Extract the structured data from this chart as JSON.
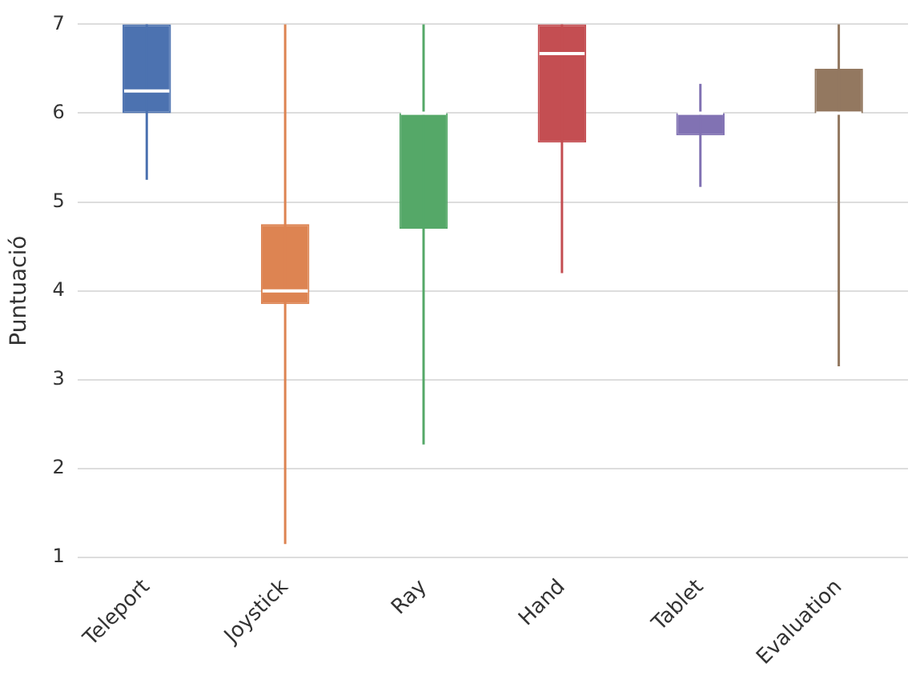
{
  "chart_data": {
    "type": "box",
    "ylabel": "Puntuació",
    "categories": [
      "Teleport",
      "Joystick",
      "Ray",
      "Hand",
      "Tablet",
      "Evaluation"
    ],
    "colors": [
      "#4c72b0",
      "#dd8452",
      "#55a868",
      "#c44e52",
      "#8172b3",
      "#937860"
    ],
    "boxes": [
      {
        "low": 5.25,
        "q1": 6,
        "median": 6.25,
        "q3": 7,
        "high": 7
      },
      {
        "low": 1.15,
        "q1": 3.85,
        "median": 4,
        "q3": 4.75,
        "high": 7
      },
      {
        "low": 2.27,
        "q1": 4.7,
        "median": 6,
        "q3": 6,
        "high": 7
      },
      {
        "low": 4.2,
        "q1": 5.67,
        "median": 6.67,
        "q3": 7,
        "high": 7
      },
      {
        "low": 5.17,
        "q1": 5.75,
        "median": 6,
        "q3": 6,
        "high": 6.33
      },
      {
        "low": 3.15,
        "q1": 6,
        "median": 6,
        "q3": 6.5,
        "high": 7
      }
    ],
    "ylim": [
      1,
      7
    ],
    "yticks": [
      1,
      2,
      3,
      4,
      5,
      6,
      7
    ],
    "grid": "y",
    "legend": false
  }
}
